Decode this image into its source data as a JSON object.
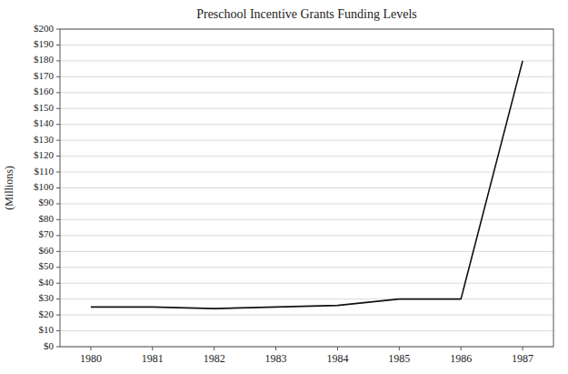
{
  "chart_data": {
    "type": "line",
    "title": "Preschool Incentive Grants Funding Levels",
    "y_label": "(Millions)",
    "x": [
      1980,
      1981,
      1982,
      1983,
      1984,
      1985,
      1986,
      1987
    ],
    "values": [
      25,
      25,
      24,
      25,
      26,
      30,
      30,
      180
    ],
    "color": "#111111",
    "xlim": [
      1979.5,
      1987.5
    ],
    "xticks": [
      1980,
      1981,
      1982,
      1983,
      1984,
      1985,
      1986,
      1987
    ],
    "ylim": [
      0,
      200
    ],
    "yticks": [
      {
        "value": 0,
        "label": "$0"
      },
      {
        "value": 10,
        "label": "$10"
      },
      {
        "value": 20,
        "label": "$20"
      },
      {
        "value": 30,
        "label": "$30"
      },
      {
        "value": 40,
        "label": "$40"
      },
      {
        "value": 50,
        "label": "$50"
      },
      {
        "value": 60,
        "label": "$60"
      },
      {
        "value": 70,
        "label": "$70"
      },
      {
        "value": 80,
        "label": "$80"
      },
      {
        "value": 90,
        "label": "$90"
      },
      {
        "value": 100,
        "label": "$100"
      },
      {
        "value": 110,
        "label": "$110"
      },
      {
        "value": 120,
        "label": "$120"
      },
      {
        "value": 130,
        "label": "$130"
      },
      {
        "value": 140,
        "label": "$140"
      },
      {
        "value": 150,
        "label": "$150"
      },
      {
        "value": 160,
        "label": "$160"
      },
      {
        "value": 170,
        "label": "$170"
      },
      {
        "value": 180,
        "label": "$180"
      },
      {
        "value": 190,
        "label": "$190"
      },
      {
        "value": 200,
        "label": "$200"
      }
    ],
    "grid": true
  }
}
